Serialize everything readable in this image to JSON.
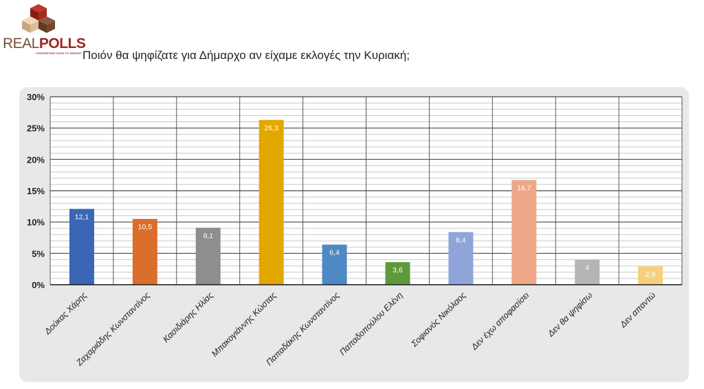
{
  "brand": {
    "name_part1": "REAL",
    "name_part2": "POLLS",
    "tagline": "CONVERTING DATA TO INSIGHT"
  },
  "question": "Ποιόν θα ψηφίζατε για Δήμαρχο αν είχαμε εκλογές την Κυριακή;",
  "chart_data": {
    "type": "bar",
    "title": "",
    "xlabel": "",
    "ylabel": "",
    "ylim": [
      0,
      30
    ],
    "y_ticks": [
      "0%",
      "5%",
      "10%",
      "15%",
      "20%",
      "25%",
      "30%"
    ],
    "grid": true,
    "categories": [
      "Δούκας Χάρης",
      "Ζαχαριάδης Κωνσταντίνος",
      "Κασιδιάρης Ηλίας",
      "Μπακογιάννης Κώστας",
      "Παπαδάκης Κωνσταντίνος",
      "Παπαδοπούλου Ελένη",
      "Σοφιανός Νικόλαος",
      "Δεν έχω αποφασίσει",
      "Δεν θα ψηφίσω",
      "Δεν απαντώ"
    ],
    "values": [
      12.1,
      10.5,
      9.1,
      26.3,
      6.4,
      3.6,
      8.4,
      16.7,
      4,
      2.9
    ],
    "value_labels": [
      "12,1",
      "10,5",
      "9,1",
      "26,3",
      "6,4",
      "3,6",
      "8,4",
      "16,7",
      "4",
      "2,9"
    ],
    "colors": [
      "#3b65b5",
      "#db6e2b",
      "#8e8e8e",
      "#e3a800",
      "#4f89c4",
      "#5f9a3a",
      "#8fa4d8",
      "#eea787",
      "#b5b5b5",
      "#f7cf7b"
    ]
  }
}
